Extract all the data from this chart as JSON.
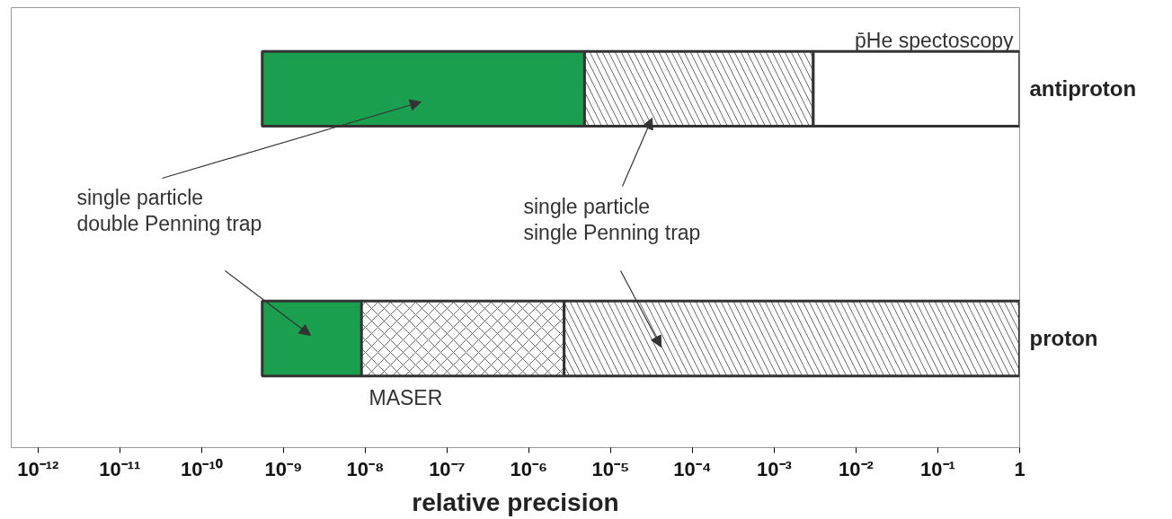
{
  "chart_data": {
    "type": "bar",
    "orientation": "horizontal",
    "categories": [
      "antiproton",
      "proton"
    ],
    "series": [
      {
        "color": "#1a9f4e",
        "base": [
          5.5e-10,
          5.5e-10
        ],
        "values": [
          4.8e-06,
          8.5e-09
        ]
      },
      {
        "color": "#ffffff",
        "base": [
          null,
          9e-09
        ],
        "values": [
          null,
          2.7e-06
        ]
      },
      {
        "color": "#ffffff",
        "base": [
          4.8e-06,
          2.7e-06
        ],
        "values": [
          0.003,
          1
        ]
      },
      {
        "color": "#ffffff",
        "base": [
          0.003,
          null
        ],
        "values": [
          1,
          null
        ]
      }
    ],
    "xlabel": "relative precision",
    "log": "x",
    "xlim": [
      4.7e-13,
      1
    ],
    "xticks": [
      {
        "value": 1e-12,
        "label": "10⁻¹²"
      },
      {
        "value": 1e-11,
        "label": "10⁻¹¹"
      },
      {
        "value": 1e-10,
        "label": "10⁻¹⁰"
      },
      {
        "value": 1e-09,
        "label": "10⁻⁹"
      },
      {
        "value": 1e-08,
        "label": "10⁻⁸"
      },
      {
        "value": 1e-07,
        "label": "10⁻⁷"
      },
      {
        "value": 1e-06,
        "label": "10⁻⁶"
      },
      {
        "value": 1e-05,
        "label": "10⁻⁵"
      },
      {
        "value": 0.0001,
        "label": "10⁻⁴"
      },
      {
        "value": 0.001,
        "label": "10⁻³"
      },
      {
        "value": 0.01,
        "label": "10⁻²"
      },
      {
        "value": 0.1,
        "label": "10⁻¹"
      },
      1
    ],
    "annotations": [
      "p̄He spectoscopy",
      "single particle\ndouble Penning trap",
      "single particle\nsingle Penning trap",
      "MASER"
    ],
    "grid": false
  }
}
